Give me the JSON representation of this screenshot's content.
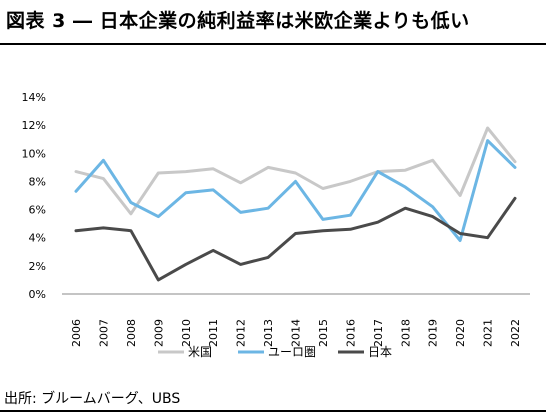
{
  "title": "図表 3 ― 日本企業の純利益率は米欧企業よりも低い",
  "source": "出所: ブルームバーグ、UBS",
  "chart_data": {
    "type": "line",
    "title": "",
    "xlabel": "",
    "ylabel": "",
    "categories": [
      "2006",
      "2007",
      "2008",
      "2009",
      "2010",
      "2011",
      "2012",
      "2013",
      "2014",
      "2015",
      "2016",
      "2017",
      "2018",
      "2019",
      "2020",
      "2021",
      "2022"
    ],
    "ylim": [
      0,
      14
    ],
    "yticks": [
      0,
      2,
      4,
      6,
      8,
      10,
      12,
      14
    ],
    "ytick_labels": [
      "0%",
      "2%",
      "4%",
      "6%",
      "8%",
      "10%",
      "12%",
      "14%"
    ],
    "grid": false,
    "legend_position": "bottom",
    "series": [
      {
        "name": "米国",
        "color": "#c8c8c8",
        "values": [
          8.7,
          8.2,
          5.7,
          8.6,
          8.7,
          8.9,
          7.9,
          9.0,
          8.6,
          7.5,
          8.0,
          8.7,
          8.8,
          9.5,
          7.0,
          11.8,
          9.4
        ]
      },
      {
        "name": "ユーロ圏",
        "color": "#6cb6e4",
        "values": [
          7.3,
          9.5,
          6.5,
          5.5,
          7.2,
          7.4,
          5.8,
          6.1,
          8.0,
          5.3,
          5.6,
          8.7,
          7.6,
          6.2,
          3.8,
          10.9,
          9.0
        ]
      },
      {
        "name": "日本",
        "color": "#4a4a4a",
        "values": [
          4.5,
          4.7,
          4.5,
          1.0,
          2.1,
          3.1,
          2.1,
          2.6,
          4.3,
          4.5,
          4.6,
          5.1,
          6.1,
          5.5,
          4.3,
          4.0,
          6.8
        ]
      }
    ]
  }
}
